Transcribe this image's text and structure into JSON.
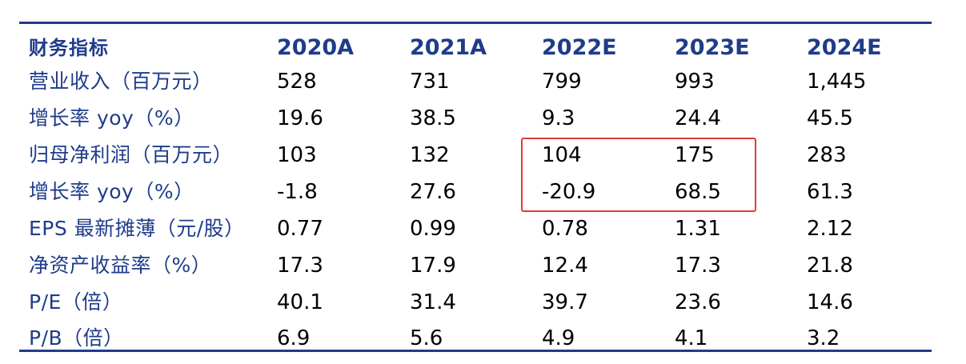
{
  "header": {
    "label": "财务指标",
    "years": [
      "2020A",
      "2021A",
      "2022E",
      "2023E",
      "2024E"
    ]
  },
  "rows": [
    {
      "label": "营业收入（百万元）",
      "values": [
        "528",
        "731",
        "799",
        "993",
        "1,445"
      ]
    },
    {
      "label": "增长率 yoy（%）",
      "values": [
        "19.6",
        "38.5",
        "9.3",
        "24.4",
        "45.5"
      ]
    },
    {
      "label": "归母净利润（百万元）",
      "values": [
        "103",
        "132",
        "104",
        "175",
        "283"
      ]
    },
    {
      "label": "增长率 yoy（%）",
      "values": [
        "-1.8",
        "27.6",
        "-20.9",
        "68.5",
        "61.3"
      ]
    },
    {
      "label": "EPS 最新摊薄（元/股）",
      "values": [
        "0.77",
        "0.99",
        "0.78",
        "1.31",
        "2.12"
      ]
    },
    {
      "label": "净资产收益率（%）",
      "values": [
        "17.3",
        "17.9",
        "12.4",
        "17.3",
        "21.8"
      ]
    },
    {
      "label": "P/E（倍）",
      "values": [
        "40.1",
        "31.4",
        "39.7",
        "23.6",
        "14.6"
      ]
    },
    {
      "label": "P/B（倍）",
      "values": [
        "6.9",
        "5.6",
        "4.9",
        "4.1",
        "3.2"
      ]
    }
  ],
  "colors": {
    "header_text": "#1f3c8a",
    "rule": "#1f3c8a",
    "highlight_border": "#e53935"
  }
}
